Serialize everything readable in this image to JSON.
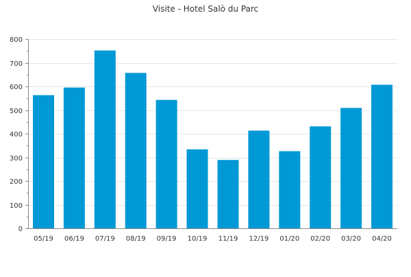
{
  "chart_data": {
    "type": "bar",
    "title": "Visite - Hotel Salò du Parc",
    "xlabel": "",
    "ylabel": "",
    "categories": [
      "05/19",
      "06/19",
      "07/19",
      "08/19",
      "09/19",
      "10/19",
      "11/19",
      "12/19",
      "01/20",
      "02/20",
      "03/20",
      "04/20"
    ],
    "values": [
      563,
      595,
      752,
      657,
      543,
      334,
      289,
      413,
      326,
      431,
      509,
      607
    ],
    "ylim": [
      0,
      800
    ],
    "yticks": [
      0,
      100,
      200,
      300,
      400,
      500,
      600,
      700,
      800
    ],
    "grid": true,
    "legend": "none",
    "colors": {
      "bar": "#0099d6",
      "grid": "#e6e6e6",
      "axis": "#888888",
      "text": "#333333"
    }
  }
}
